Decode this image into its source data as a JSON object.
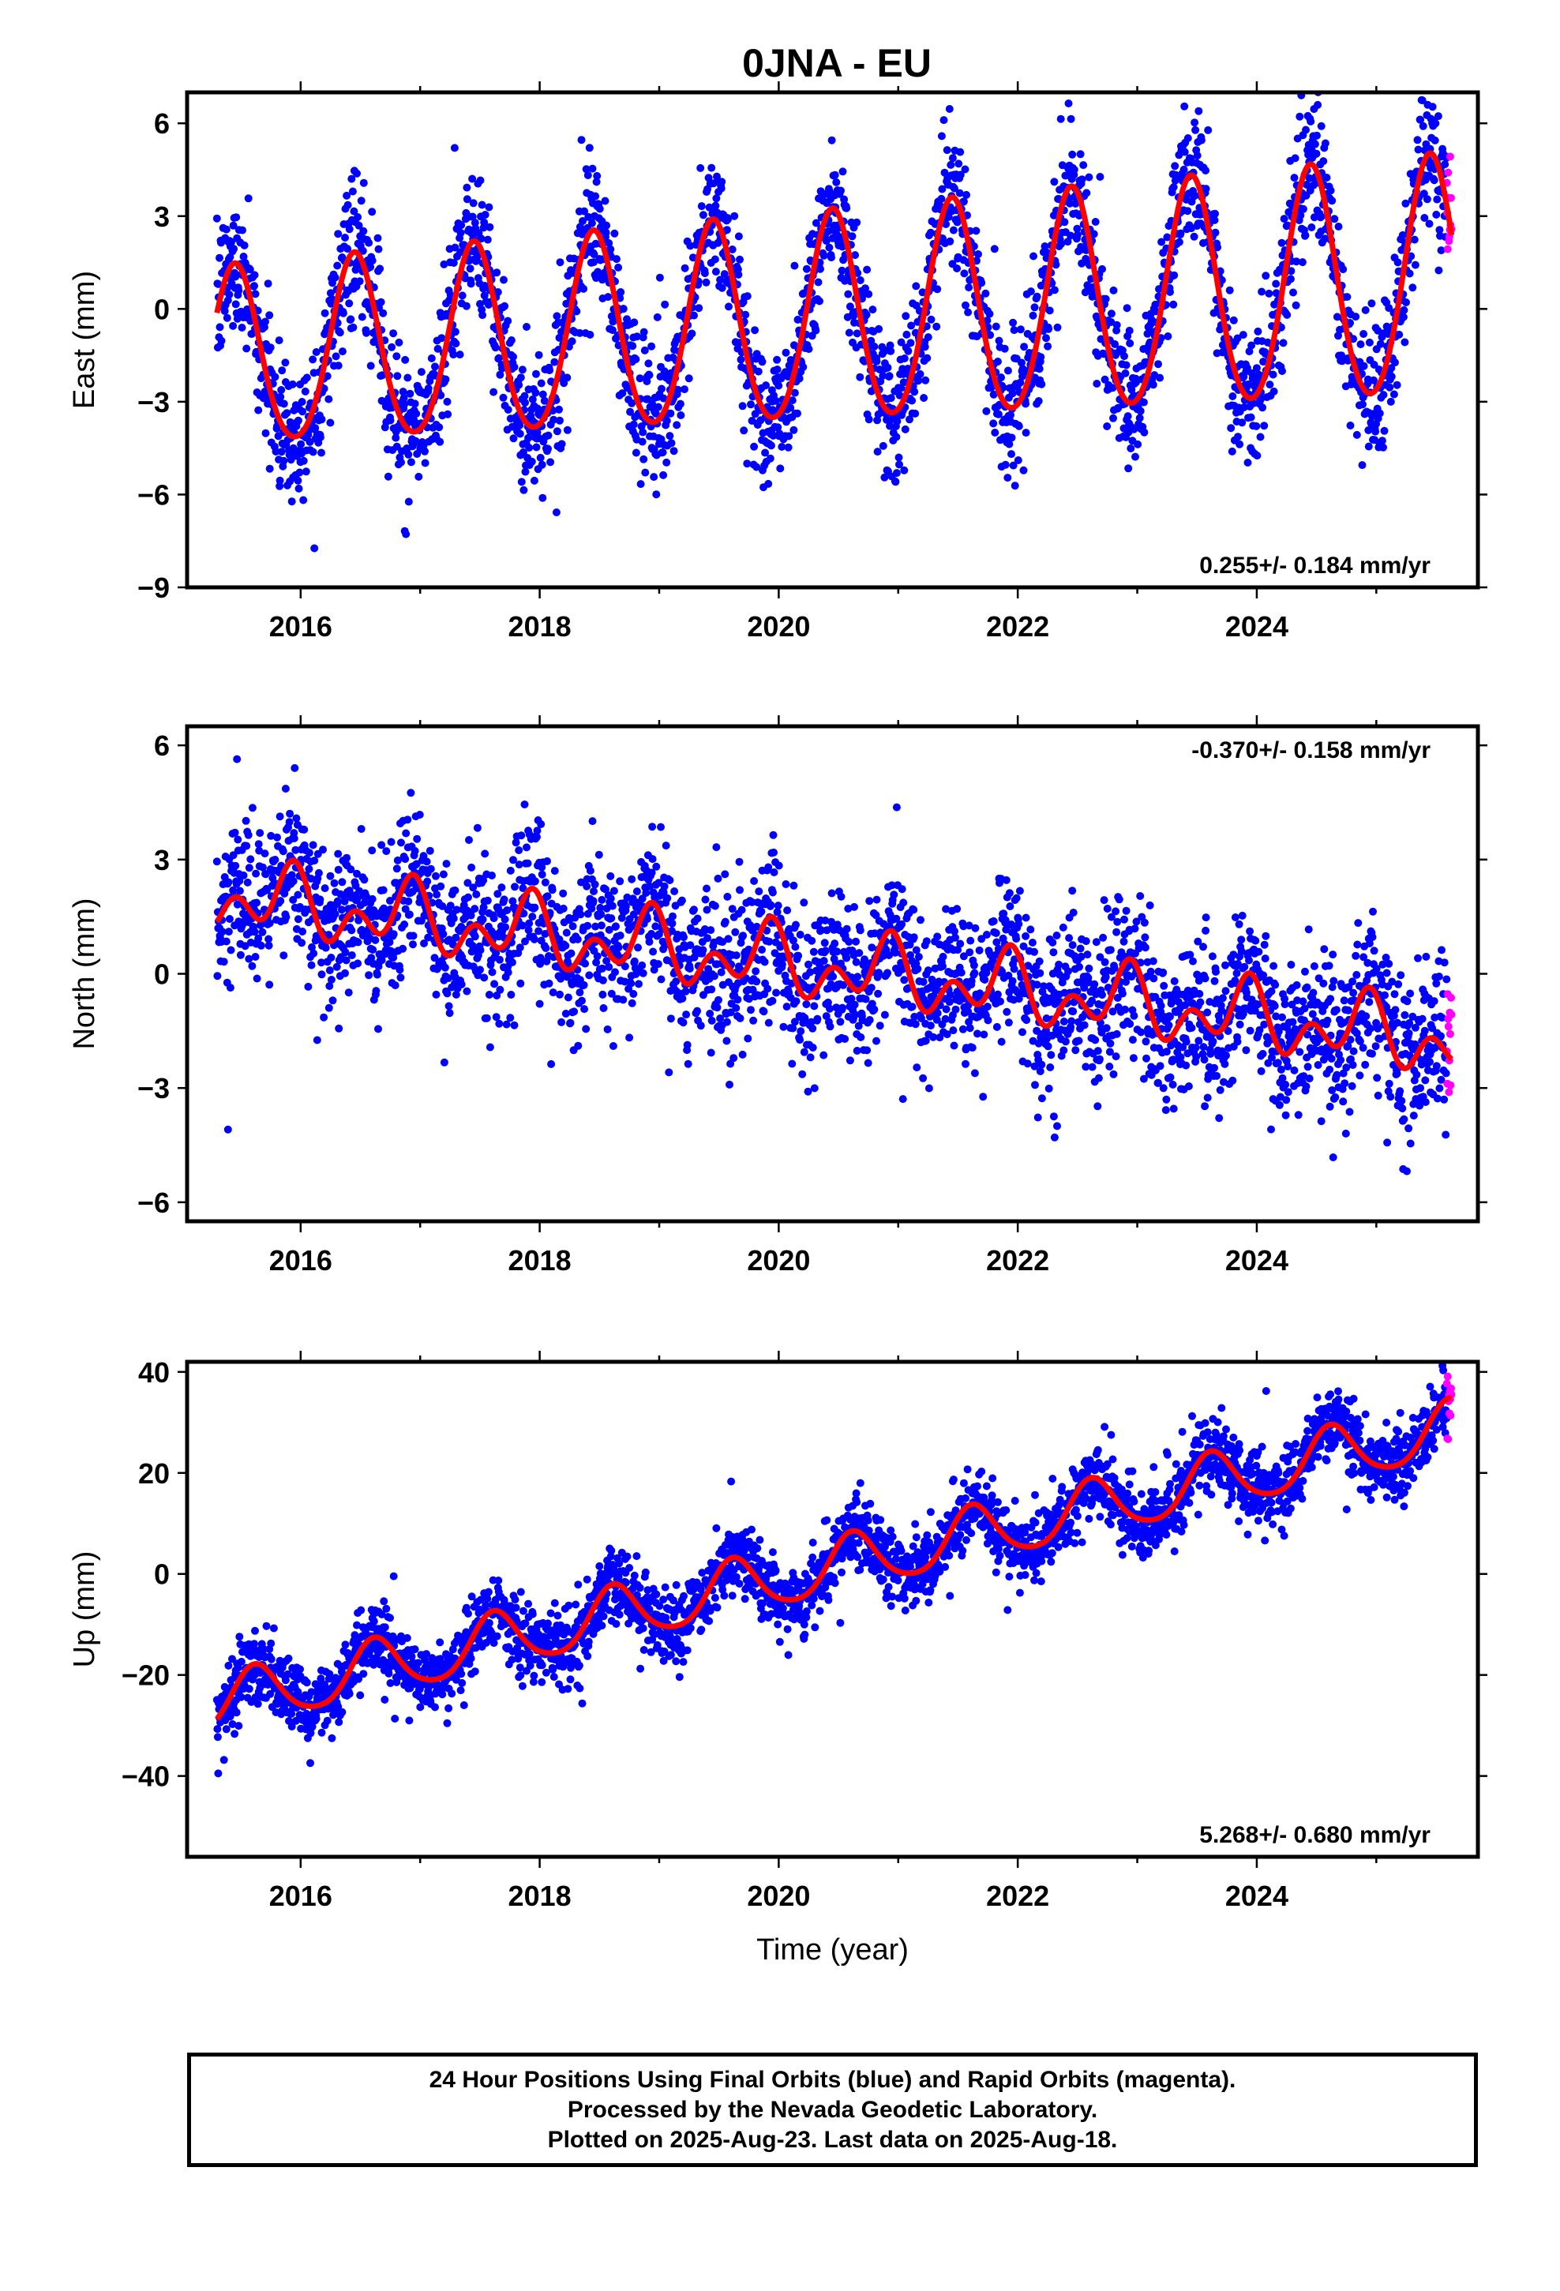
{
  "title": "0JNA - EU",
  "colors": {
    "final_orbits": "#0000ff",
    "rapid_orbits": "#ff00ff",
    "model": "#ff0000"
  },
  "caption": {
    "line1": "24 Hour Positions Using Final Orbits (blue) and Rapid Orbits (magenta).",
    "line2": "Processed by the Nevada Geodetic Laboratory.",
    "line3": "Plotted on 2025-Aug-23. Last data on 2025-Aug-18."
  },
  "chart_data": [
    {
      "type": "scatter",
      "component": "east",
      "ylabel": "East (mm)",
      "xlabel": "",
      "xlim": [
        2015.05,
        2025.85
      ],
      "ylim": [
        -9,
        7
      ],
      "x_ticks": [
        2016,
        2018,
        2020,
        2022,
        2024
      ],
      "y_ticks": [
        -9,
        -6,
        -3,
        0,
        3,
        6
      ],
      "rate_label": "0.255+/- 0.184 mm/yr",
      "rate_position": "bottom-right",
      "data_range": [
        2015.3,
        2025.63
      ],
      "model": {
        "offset": -0.5,
        "rate": 0.255,
        "ref_year": 2020,
        "annual_amp": 3.3,
        "annual_peak": 0.45,
        "annual_amp_trend": 0.1,
        "semiannual_amp": 0.3,
        "semiannual_peak": 0.45
      },
      "noise_sd": 1.1,
      "model_knots": [
        [
          2015.3,
          0.8
        ],
        [
          2015.44,
          2.3
        ],
        [
          2015.9,
          -4.3
        ],
        [
          2016.44,
          2.5
        ],
        [
          2016.9,
          -4.0
        ],
        [
          2017.44,
          2.8
        ],
        [
          2017.9,
          -3.7
        ],
        [
          2018.44,
          3.0
        ],
        [
          2018.9,
          -3.4
        ],
        [
          2019.44,
          3.2
        ],
        [
          2019.9,
          -3.1
        ],
        [
          2020.44,
          3.5
        ],
        [
          2020.9,
          -2.9
        ],
        [
          2021.44,
          3.8
        ],
        [
          2021.9,
          -2.7
        ],
        [
          2022.44,
          4.1
        ],
        [
          2022.9,
          -2.5
        ],
        [
          2023.44,
          4.3
        ],
        [
          2023.9,
          -2.2
        ],
        [
          2024.44,
          4.6
        ],
        [
          2024.9,
          -2.0
        ],
        [
          2025.44,
          4.9
        ],
        [
          2025.63,
          2.1
        ]
      ]
    },
    {
      "type": "scatter",
      "component": "north",
      "ylabel": "North (mm)",
      "xlabel": "",
      "xlim": [
        2015.05,
        2025.85
      ],
      "ylim": [
        -6.5,
        6.5
      ],
      "x_ticks": [
        2016,
        2018,
        2020,
        2022,
        2024
      ],
      "y_ticks": [
        -6,
        -3,
        0,
        3,
        6
      ],
      "rate_label": "-0.370+/- 0.158 mm/yr",
      "rate_position": "top-right",
      "data_range": [
        2015.3,
        2025.63
      ],
      "model": {
        "offset": 0.3,
        "rate": -0.37,
        "ref_year": 2020,
        "annual_amp": 0.6,
        "annual_peak": 0.9,
        "annual_amp_trend": 0.0,
        "semiannual_amp": 0.6,
        "semiannual_peak": 0.95
      },
      "noise_sd": 1.0,
      "model_knots": [
        [
          2015.3,
          1.0
        ],
        [
          2015.55,
          1.5
        ],
        [
          2015.92,
          3.0
        ],
        [
          2016.3,
          0.7
        ],
        [
          2016.55,
          1.2
        ],
        [
          2016.92,
          2.6
        ],
        [
          2017.3,
          0.3
        ],
        [
          2017.55,
          0.9
        ],
        [
          2017.92,
          2.3
        ],
        [
          2018.3,
          -0.1
        ],
        [
          2018.55,
          0.4
        ],
        [
          2018.92,
          1.8
        ],
        [
          2019.3,
          -0.5
        ],
        [
          2019.55,
          0.0
        ],
        [
          2019.92,
          1.5
        ],
        [
          2020.3,
          -0.8
        ],
        [
          2020.55,
          -0.4
        ],
        [
          2020.92,
          1.1
        ],
        [
          2021.3,
          -1.2
        ],
        [
          2021.55,
          -0.7
        ],
        [
          2021.92,
          0.7
        ],
        [
          2022.3,
          -1.5
        ],
        [
          2022.55,
          -1.1
        ],
        [
          2022.92,
          0.4
        ],
        [
          2023.3,
          -1.9
        ],
        [
          2023.55,
          -1.4
        ],
        [
          2023.92,
          0.0
        ],
        [
          2024.3,
          -2.3
        ],
        [
          2024.55,
          -1.8
        ],
        [
          2024.92,
          -0.4
        ],
        [
          2025.3,
          -2.6
        ],
        [
          2025.63,
          -2.2
        ]
      ]
    },
    {
      "type": "scatter",
      "component": "up",
      "ylabel": "Up (mm)",
      "xlabel": "Time (year)",
      "xlim": [
        2015.05,
        2025.85
      ],
      "ylim": [
        -56,
        42
      ],
      "x_ticks": [
        2016,
        2018,
        2020,
        2022,
        2024
      ],
      "y_ticks": [
        -40,
        -20,
        0,
        20,
        40
      ],
      "rate_label": "5.268+/- 0.680 mm/yr",
      "rate_position": "bottom-right",
      "data_range": [
        2015.3,
        2025.63
      ],
      "model": {
        "offset": -1.0,
        "rate": 5.268,
        "ref_year": 2020,
        "annual_amp": 5.5,
        "annual_peak": 0.62,
        "annual_amp_trend": 0.0,
        "semiannual_amp": 0.8,
        "semiannual_peak": 0.6
      },
      "noise_sd": 3.6,
      "model_knots": [
        [
          2015.3,
          -31.0
        ],
        [
          2015.62,
          -19.0
        ],
        [
          2016.1,
          -28.0
        ],
        [
          2016.62,
          -14.0
        ],
        [
          2017.1,
          -22.5
        ],
        [
          2017.62,
          -8.5
        ],
        [
          2018.1,
          -17.5
        ],
        [
          2018.62,
          -3.5
        ],
        [
          2019.1,
          -12.0
        ],
        [
          2019.62,
          2.0
        ],
        [
          2020.1,
          -6.5
        ],
        [
          2020.62,
          7.0
        ],
        [
          2021.1,
          -1.5
        ],
        [
          2021.62,
          12.0
        ],
        [
          2022.1,
          3.5
        ],
        [
          2022.62,
          17.5
        ],
        [
          2023.1,
          9.0
        ],
        [
          2023.62,
          23.0
        ],
        [
          2024.1,
          14.5
        ],
        [
          2024.62,
          28.0
        ],
        [
          2025.1,
          19.5
        ],
        [
          2025.63,
          34.0
        ]
      ]
    }
  ]
}
